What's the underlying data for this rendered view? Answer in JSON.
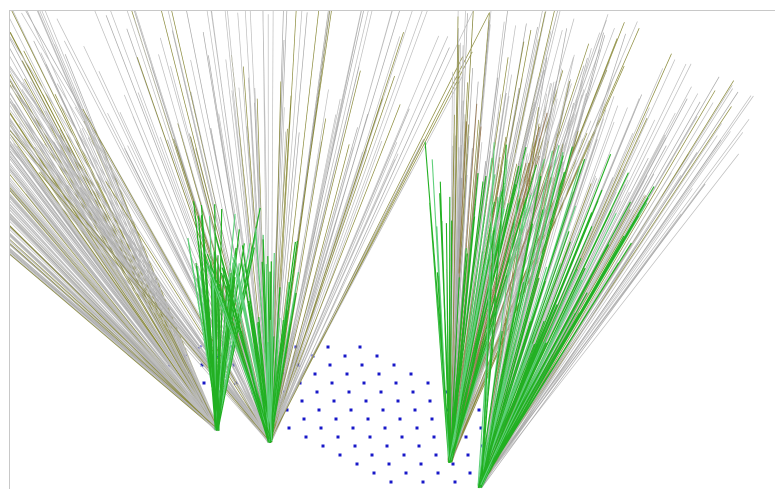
{
  "scene": {
    "colors": {
      "background": "#ffffff",
      "frame": "#c8c8c8",
      "gray_ray": "#bdbdbd",
      "gray_ray_dark": "#a8a8a8",
      "green_ray": "#22b022",
      "green_ray_light": "#5fd07a",
      "olive_ray": "#8a8a3a",
      "brown_ray": "#9b7a52",
      "dot": "#1818c8"
    }
  }
}
